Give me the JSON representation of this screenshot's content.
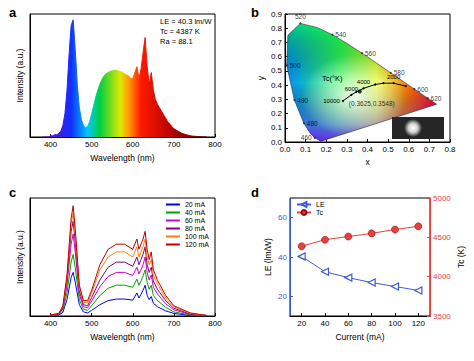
{
  "chart_data": [
    {
      "type": "area",
      "title": "a",
      "x": [
        380,
        385,
        390,
        395,
        400,
        405,
        410,
        415,
        420,
        425,
        430,
        435,
        440,
        445,
        450,
        455,
        460,
        465,
        470,
        475,
        480,
        485,
        490,
        495,
        500,
        505,
        510,
        515,
        520,
        525,
        530,
        535,
        540,
        545,
        550,
        555,
        560,
        565,
        570,
        575,
        580,
        585,
        590,
        595,
        600,
        605,
        610,
        615,
        620,
        625,
        630,
        635,
        640,
        645,
        650,
        655,
        660,
        665,
        670,
        675,
        680,
        685,
        690,
        695,
        700,
        705,
        710,
        715,
        720,
        725,
        730,
        735,
        740,
        745,
        750,
        755,
        760,
        765,
        770,
        775,
        780
      ],
      "values": [
        0,
        0,
        0,
        0,
        0.01,
        0.01,
        0.02,
        0.02,
        0.03,
        0.05,
        0.1,
        0.2,
        0.4,
        0.7,
        0.95,
        1.0,
        0.75,
        0.45,
        0.25,
        0.15,
        0.1,
        0.08,
        0.09,
        0.13,
        0.2,
        0.27,
        0.34,
        0.4,
        0.45,
        0.49,
        0.52,
        0.54,
        0.55,
        0.56,
        0.565,
        0.57,
        0.57,
        0.565,
        0.56,
        0.55,
        0.54,
        0.53,
        0.52,
        0.5,
        0.5,
        0.55,
        0.6,
        0.5,
        0.58,
        0.72,
        0.85,
        0.6,
        0.45,
        0.55,
        0.4,
        0.32,
        0.28,
        0.25,
        0.22,
        0.19,
        0.16,
        0.13,
        0.11,
        0.09,
        0.07,
        0.06,
        0.05,
        0.04,
        0.03,
        0.025,
        0.02,
        0.015,
        0.01,
        0.008,
        0.006,
        0.005,
        0.004,
        0.003,
        0.002,
        0.001,
        0
      ],
      "xlim": [
        350,
        800
      ],
      "xticks": [
        400,
        500,
        600,
        700,
        800
      ],
      "ylim": [
        0,
        1.05
      ],
      "x_label": "Wavelength (nm)",
      "y_label": "Intensity (a.u.)",
      "annotations": [
        "LE = 40.3 lm/W",
        "Tc = 4387 K",
        "Ra = 88.1"
      ],
      "tick_labels": "x",
      "grid": false
    },
    {
      "type": "chromaticity",
      "title": "b",
      "xlim": [
        0,
        0.8
      ],
      "ylim": [
        0,
        0.9
      ],
      "xticks": [
        {
          "value": 0,
          "label": "0.0"
        },
        0.1,
        0.2,
        0.3,
        0.4,
        0.5,
        0.6,
        0.7,
        0.8
      ],
      "yticks": [
        {
          "value": 0,
          "label": "0.0"
        },
        0.1,
        0.2,
        0.3,
        0.4,
        0.5,
        0.6,
        0.7,
        0.8,
        0.9
      ],
      "x_label": "x",
      "y_label": "y",
      "series": [
        {
          "type": "area",
          "x": [
            0.1741,
            0.144,
            0.1241,
            0.0913,
            0.0454,
            0.0082,
            0.0139,
            0.0743,
            0.1547,
            0.2296,
            0.3016,
            0.3731,
            0.4441,
            0.5125,
            0.5752,
            0.627,
            0.6915,
            0.7347
          ],
          "values": [
            0.005,
            0.0297,
            0.0578,
            0.1327,
            0.295,
            0.5384,
            0.7502,
            0.8338,
            0.8059,
            0.7543,
            0.6923,
            0.6245,
            0.5547,
            0.4866,
            0.4242,
            0.3725,
            0.3083,
            0.2653
          ],
          "point_labels": [
            null,
            "460",
            null,
            "480",
            "490",
            "500",
            null,
            "520",
            null,
            "540",
            null,
            "560",
            null,
            "580",
            null,
            "600",
            "620",
            null
          ]
        },
        {
          "type": "line",
          "color": "#000000",
          "x": [
            0.2807,
            0.3221,
            0.3451,
            0.3805,
            0.4369,
            0.4769,
            0.5266,
            0.5857
          ],
          "values": [
            0.2884,
            0.3318,
            0.3516,
            0.3768,
            0.4041,
            0.4137,
            0.4133,
            0.3931
          ],
          "point_labels": [
            "10000",
            "6000",
            null,
            "4000",
            null,
            null,
            "2000",
            null
          ]
        },
        {
          "type": "scatter",
          "color": "#000000",
          "x": [
            0.3625
          ],
          "values": [
            0.3548
          ],
          "value_labels": [
            "(0.3625,0.3548)"
          ]
        }
      ],
      "annotations": [
        "Tc(°K)"
      ],
      "grid": false
    },
    {
      "type": "line",
      "title": "c",
      "x": [
        400,
        420,
        430,
        440,
        450,
        455,
        460,
        470,
        480,
        490,
        500,
        520,
        540,
        560,
        580,
        600,
        610,
        615,
        620,
        625,
        630,
        635,
        640,
        645,
        650,
        660,
        680,
        700,
        740,
        780
      ],
      "series": [
        {
          "name": "20 mA",
          "color": "#0000ff",
          "values": [
            0.001,
            0.002,
            0.007,
            0.032,
            0.075,
            0.085,
            0.066,
            0.022,
            0.008,
            0.006,
            0.011,
            0.022,
            0.03,
            0.033,
            0.033,
            0.031,
            0.045,
            0.035,
            0.042,
            0.05,
            0.06,
            0.04,
            0.032,
            0.038,
            0.025,
            0.018,
            0.01,
            0.005,
            0.001,
            0
          ]
        },
        {
          "name": "40 mA",
          "color": "#00a000",
          "values": [
            0.001,
            0.003,
            0.01,
            0.045,
            0.105,
            0.12,
            0.094,
            0.032,
            0.013,
            0.011,
            0.02,
            0.04,
            0.054,
            0.06,
            0.06,
            0.056,
            0.072,
            0.06,
            0.068,
            0.078,
            0.09,
            0.065,
            0.052,
            0.06,
            0.04,
            0.03,
            0.017,
            0.008,
            0.002,
            0
          ]
        },
        {
          "name": "60 mA",
          "color": "#cc00cc",
          "values": [
            0.001,
            0.004,
            0.014,
            0.06,
            0.14,
            0.16,
            0.125,
            0.042,
            0.018,
            0.016,
            0.029,
            0.057,
            0.077,
            0.085,
            0.085,
            0.079,
            0.095,
            0.082,
            0.09,
            0.1,
            0.115,
            0.085,
            0.07,
            0.08,
            0.056,
            0.043,
            0.024,
            0.012,
            0.003,
            0.001
          ]
        },
        {
          "name": "80 mA",
          "color": "#800080",
          "values": [
            0.002,
            0.004,
            0.016,
            0.07,
            0.165,
            0.185,
            0.145,
            0.05,
            0.022,
            0.02,
            0.036,
            0.07,
            0.095,
            0.105,
            0.105,
            0.097,
            0.115,
            0.1,
            0.11,
            0.12,
            0.135,
            0.1,
            0.085,
            0.095,
            0.068,
            0.052,
            0.03,
            0.015,
            0.004,
            0.001
          ]
        },
        {
          "name": "100 mA",
          "color": "#ff8000",
          "values": [
            0.002,
            0.005,
            0.018,
            0.075,
            0.18,
            0.2,
            0.16,
            0.055,
            0.027,
            0.026,
            0.045,
            0.09,
            0.115,
            0.125,
            0.125,
            0.115,
            0.135,
            0.115,
            0.125,
            0.135,
            0.15,
            0.115,
            0.1,
            0.11,
            0.08,
            0.062,
            0.035,
            0.018,
            0.005,
            0.001
          ]
        },
        {
          "name": "120 mA",
          "color": "#c00000",
          "values": [
            0.002,
            0.005,
            0.02,
            0.08,
            0.19,
            0.215,
            0.17,
            0.06,
            0.03,
            0.03,
            0.05,
            0.1,
            0.13,
            0.14,
            0.14,
            0.13,
            0.15,
            0.13,
            0.14,
            0.15,
            0.165,
            0.13,
            0.11,
            0.125,
            0.09,
            0.07,
            0.04,
            0.02,
            0.006,
            0.001
          ]
        }
      ],
      "xlim": [
        350,
        800
      ],
      "xticks": [
        400,
        500,
        600,
        700,
        800
      ],
      "ylim": [
        0,
        0.23
      ],
      "x_label": "Wavelength (nm)",
      "y_label": "Intensity (a.u.)",
      "legend": "upper right",
      "tick_labels": "x",
      "grid": false
    },
    {
      "type": "line",
      "title": "d",
      "x": [
        20,
        40,
        60,
        80,
        100,
        120
      ],
      "series": [
        {
          "name": "LE",
          "color": "#3d5bd9",
          "marker": "triangle",
          "values": [
            40.3,
            32.5,
            29.5,
            27,
            25,
            23
          ]
        },
        {
          "name": "Tc",
          "color": "#e8403a",
          "marker": "circle",
          "axis": "y2",
          "values": [
            4387,
            4470,
            4510,
            4550,
            4600,
            4640
          ]
        }
      ],
      "xlim": [
        10,
        130
      ],
      "xticks": [
        20,
        40,
        60,
        80,
        100,
        120
      ],
      "ylim": [
        10,
        70
      ],
      "yticks": [
        20,
        40,
        60
      ],
      "y2lim": [
        3500,
        5000
      ],
      "y2ticks": [
        3500,
        4000,
        4500,
        5000
      ],
      "x_label": "Current (mA)",
      "y_label": "LE (lm/W)",
      "y2_label": "Tc (K)",
      "legend": "upper left",
      "grid": false
    }
  ]
}
